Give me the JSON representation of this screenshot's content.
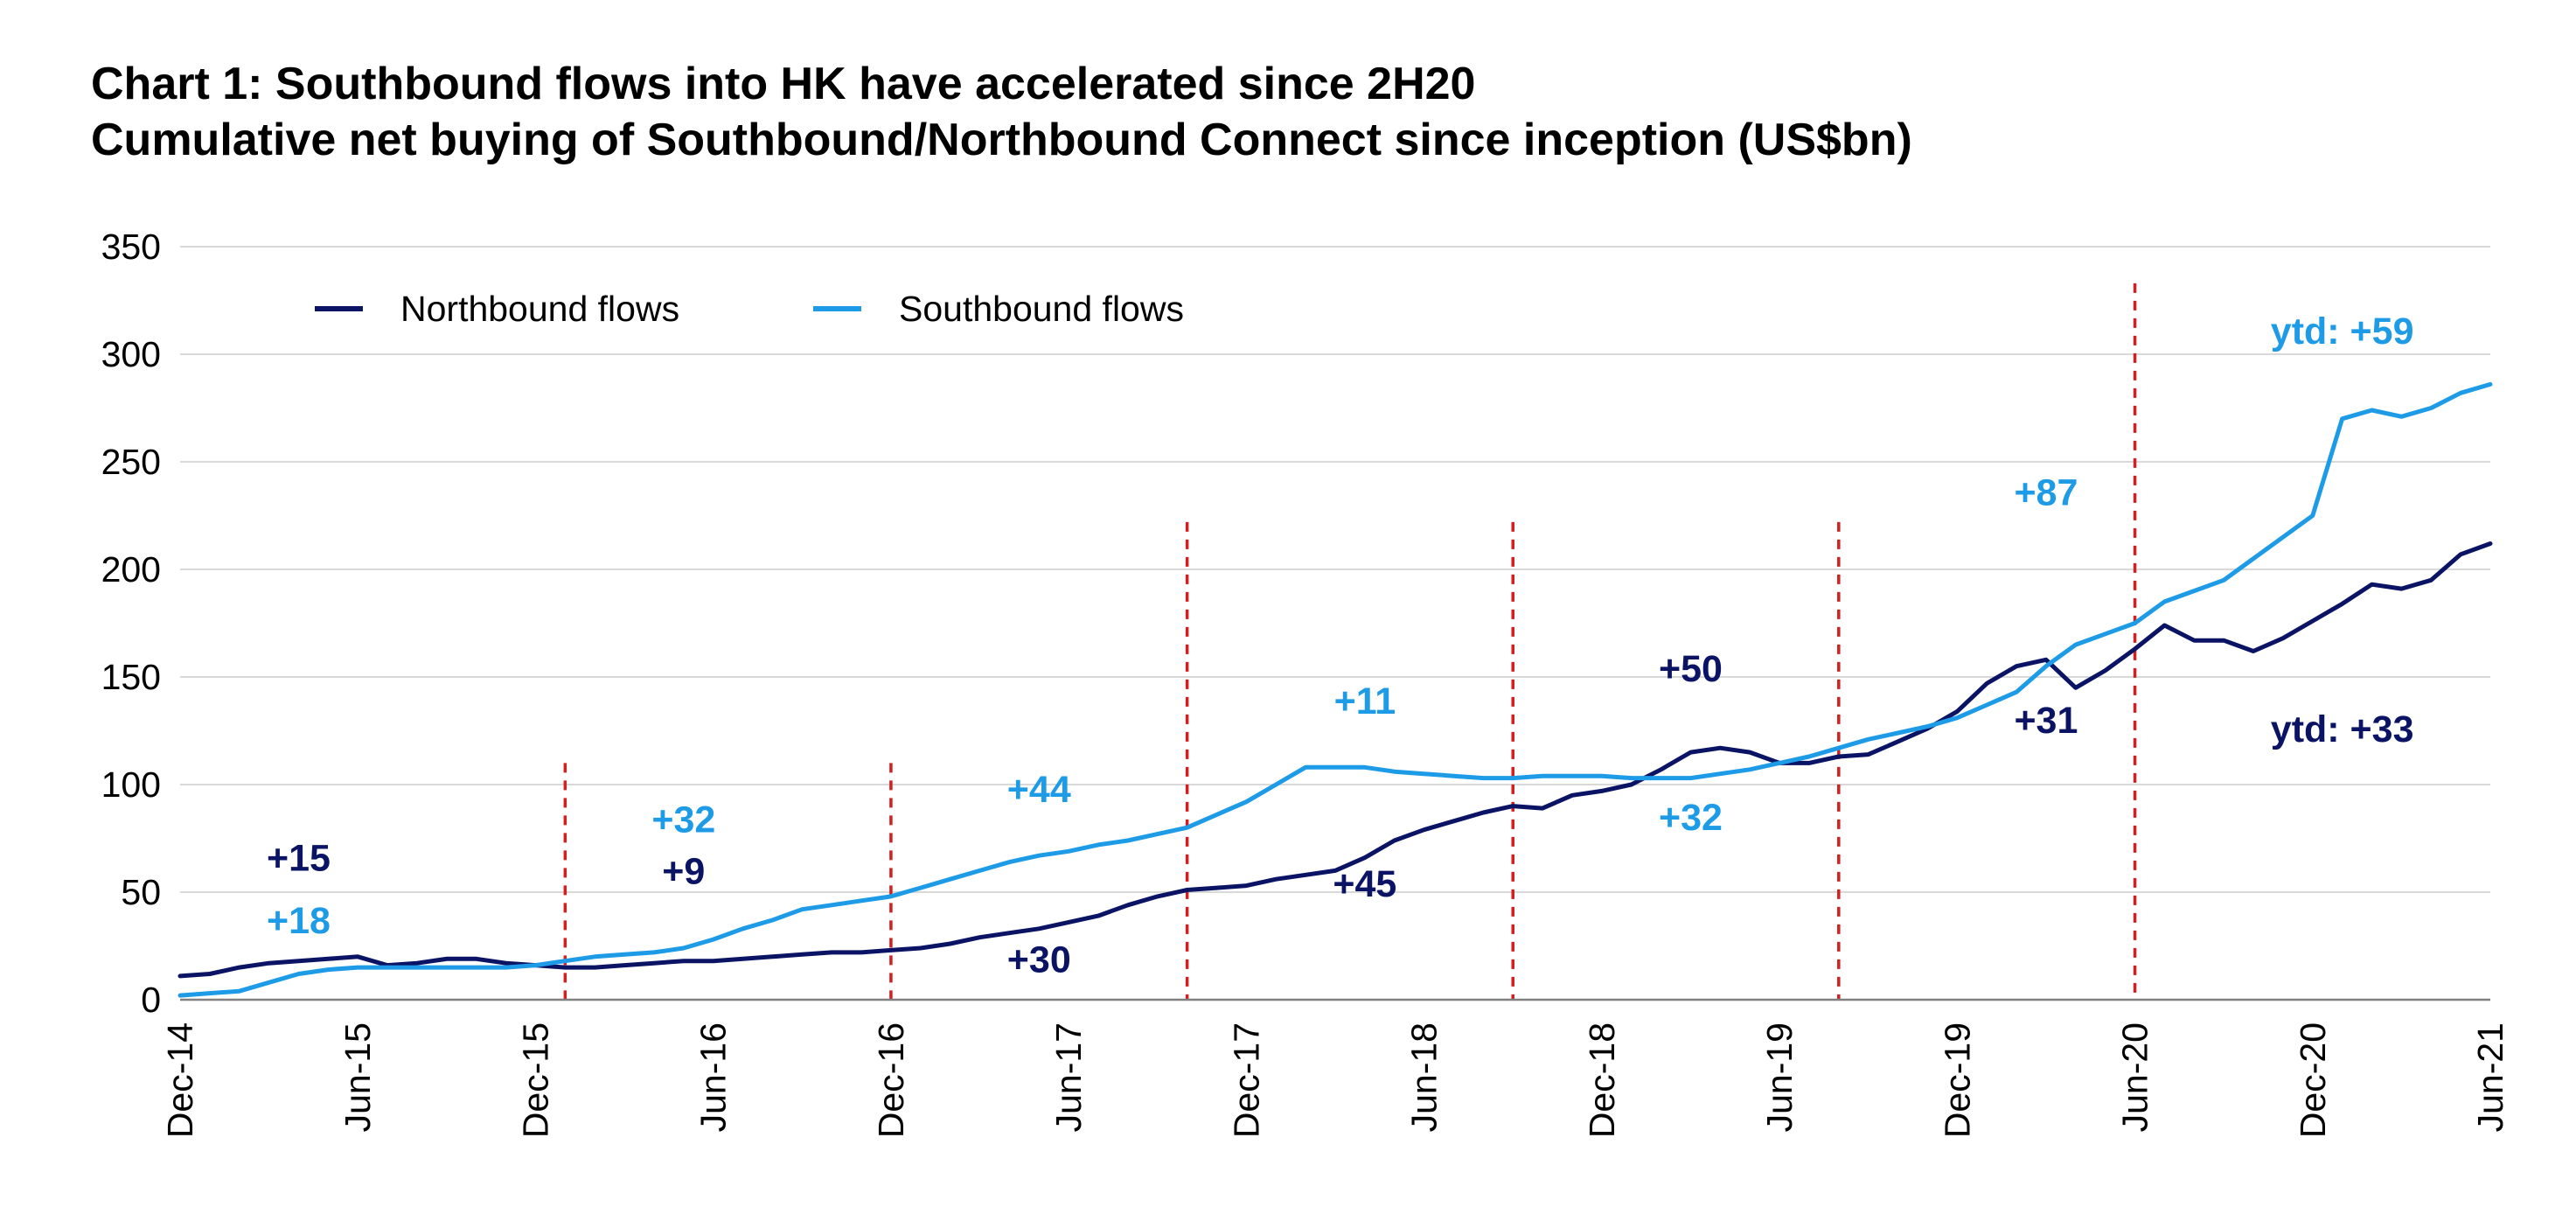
{
  "header": {
    "title": "Chart 1: Southbound flows into HK have accelerated since 2H20",
    "subtitle": "Cumulative net buying of Southbound/Northbound Connect since inception (US$bn)"
  },
  "chart_data": {
    "type": "line",
    "title": "Chart 1: Southbound flows into HK have accelerated since 2H20",
    "subtitle": "Cumulative net buying of Southbound/Northbound Connect since inception (US$bn)",
    "xlabel": "",
    "ylabel": "",
    "ylim": [
      0,
      350
    ],
    "yticks": [
      "0",
      "50",
      "100",
      "150",
      "200",
      "250",
      "300",
      "350"
    ],
    "xlim": [
      "2014-12",
      "2021-06"
    ],
    "xticks": [
      "Dec-14",
      "Jun-15",
      "Dec-15",
      "Jun-16",
      "Dec-16",
      "Jun-17",
      "Dec-17",
      "Jun-18",
      "Dec-18",
      "Jun-19",
      "Dec-19",
      "Jun-20",
      "Dec-20",
      "Jun-21"
    ],
    "grid": "horizontal",
    "legend_position": "top-left",
    "colors": {
      "northbound": "#0b1464",
      "southbound": "#1e9be6",
      "separator": "#d21f1f",
      "grid": "#d9d9d9"
    },
    "vertical_lines": [
      {
        "x": "2016-01",
        "top": 110
      },
      {
        "x": "2016-12",
        "top": 110
      },
      {
        "x": "2017-10",
        "top": 222
      },
      {
        "x": "2018-09",
        "top": 222
      },
      {
        "x": "2019-08",
        "top": 222
      },
      {
        "x": "2020-06",
        "top": 333
      }
    ],
    "series": [
      {
        "name": "Northbound flows",
        "color": "#0b1464",
        "points": [
          [
            "2014-12",
            11
          ],
          [
            "2015-01",
            12
          ],
          [
            "2015-02",
            15
          ],
          [
            "2015-03",
            17
          ],
          [
            "2015-04",
            18
          ],
          [
            "2015-05",
            19
          ],
          [
            "2015-06",
            20
          ],
          [
            "2015-07",
            16
          ],
          [
            "2015-08",
            17
          ],
          [
            "2015-09",
            19
          ],
          [
            "2015-10",
            19
          ],
          [
            "2015-11",
            17
          ],
          [
            "2015-12",
            16
          ],
          [
            "2016-01",
            15
          ],
          [
            "2016-02",
            15
          ],
          [
            "2016-03",
            16
          ],
          [
            "2016-04",
            17
          ],
          [
            "2016-05",
            18
          ],
          [
            "2016-06",
            18
          ],
          [
            "2016-07",
            19
          ],
          [
            "2016-08",
            20
          ],
          [
            "2016-09",
            21
          ],
          [
            "2016-10",
            22
          ],
          [
            "2016-11",
            22
          ],
          [
            "2016-12",
            23
          ],
          [
            "2017-01",
            24
          ],
          [
            "2017-02",
            26
          ],
          [
            "2017-03",
            29
          ],
          [
            "2017-04",
            31
          ],
          [
            "2017-05",
            33
          ],
          [
            "2017-06",
            36
          ],
          [
            "2017-07",
            39
          ],
          [
            "2017-08",
            44
          ],
          [
            "2017-09",
            48
          ],
          [
            "2017-10",
            51
          ],
          [
            "2017-11",
            52
          ],
          [
            "2017-12",
            53
          ],
          [
            "2018-01",
            56
          ],
          [
            "2018-02",
            58
          ],
          [
            "2018-03",
            60
          ],
          [
            "2018-04",
            66
          ],
          [
            "2018-05",
            74
          ],
          [
            "2018-06",
            79
          ],
          [
            "2018-07",
            83
          ],
          [
            "2018-08",
            87
          ],
          [
            "2018-09",
            90
          ],
          [
            "2018-10",
            89
          ],
          [
            "2018-11",
            95
          ],
          [
            "2018-12",
            97
          ],
          [
            "2019-01",
            100
          ],
          [
            "2019-02",
            107
          ],
          [
            "2019-03",
            115
          ],
          [
            "2019-04",
            117
          ],
          [
            "2019-05",
            115
          ],
          [
            "2019-06",
            110
          ],
          [
            "2019-07",
            110
          ],
          [
            "2019-08",
            113
          ],
          [
            "2019-09",
            114
          ],
          [
            "2019-10",
            120
          ],
          [
            "2019-11",
            126
          ],
          [
            "2019-12",
            134
          ],
          [
            "2020-01",
            147
          ],
          [
            "2020-02",
            155
          ],
          [
            "2020-03",
            158
          ],
          [
            "2020-04",
            145
          ],
          [
            "2020-05",
            153
          ],
          [
            "2020-06",
            163
          ],
          [
            "2020-07",
            174
          ],
          [
            "2020-08",
            167
          ],
          [
            "2020-09",
            167
          ],
          [
            "2020-10",
            162
          ],
          [
            "2020-11",
            168
          ],
          [
            "2020-12",
            176
          ],
          [
            "2021-01",
            184
          ],
          [
            "2021-02",
            193
          ],
          [
            "2021-03",
            191
          ],
          [
            "2021-04",
            195
          ],
          [
            "2021-05",
            207
          ],
          [
            "2021-06",
            212
          ]
        ]
      },
      {
        "name": "Southbound flows",
        "color": "#1e9be6",
        "points": [
          [
            "2014-12",
            2
          ],
          [
            "2015-01",
            3
          ],
          [
            "2015-02",
            4
          ],
          [
            "2015-03",
            8
          ],
          [
            "2015-04",
            12
          ],
          [
            "2015-05",
            14
          ],
          [
            "2015-06",
            15
          ],
          [
            "2015-07",
            15
          ],
          [
            "2015-08",
            15
          ],
          [
            "2015-09",
            15
          ],
          [
            "2015-10",
            15
          ],
          [
            "2015-11",
            15
          ],
          [
            "2015-12",
            16
          ],
          [
            "2016-01",
            18
          ],
          [
            "2016-02",
            20
          ],
          [
            "2016-03",
            21
          ],
          [
            "2016-04",
            22
          ],
          [
            "2016-05",
            24
          ],
          [
            "2016-06",
            28
          ],
          [
            "2016-07",
            33
          ],
          [
            "2016-08",
            37
          ],
          [
            "2016-09",
            42
          ],
          [
            "2016-10",
            44
          ],
          [
            "2016-11",
            46
          ],
          [
            "2016-12",
            48
          ],
          [
            "2017-01",
            52
          ],
          [
            "2017-02",
            56
          ],
          [
            "2017-03",
            60
          ],
          [
            "2017-04",
            64
          ],
          [
            "2017-05",
            67
          ],
          [
            "2017-06",
            69
          ],
          [
            "2017-07",
            72
          ],
          [
            "2017-08",
            74
          ],
          [
            "2017-09",
            77
          ],
          [
            "2017-10",
            80
          ],
          [
            "2017-11",
            86
          ],
          [
            "2017-12",
            92
          ],
          [
            "2018-01",
            100
          ],
          [
            "2018-02",
            108
          ],
          [
            "2018-03",
            108
          ],
          [
            "2018-04",
            108
          ],
          [
            "2018-05",
            106
          ],
          [
            "2018-06",
            105
          ],
          [
            "2018-07",
            104
          ],
          [
            "2018-08",
            103
          ],
          [
            "2018-09",
            103
          ],
          [
            "2018-10",
            104
          ],
          [
            "2018-11",
            104
          ],
          [
            "2018-12",
            104
          ],
          [
            "2019-01",
            103
          ],
          [
            "2019-02",
            103
          ],
          [
            "2019-03",
            103
          ],
          [
            "2019-04",
            105
          ],
          [
            "2019-05",
            107
          ],
          [
            "2019-06",
            110
          ],
          [
            "2019-07",
            113
          ],
          [
            "2019-08",
            117
          ],
          [
            "2019-09",
            121
          ],
          [
            "2019-10",
            124
          ],
          [
            "2019-11",
            127
          ],
          [
            "2019-12",
            131
          ],
          [
            "2020-01",
            137
          ],
          [
            "2020-02",
            143
          ],
          [
            "2020-03",
            155
          ],
          [
            "2020-04",
            165
          ],
          [
            "2020-05",
            170
          ],
          [
            "2020-06",
            175
          ],
          [
            "2020-07",
            185
          ],
          [
            "2020-08",
            190
          ],
          [
            "2020-09",
            195
          ],
          [
            "2020-10",
            205
          ],
          [
            "2020-11",
            215
          ],
          [
            "2020-12",
            225
          ],
          [
            "2021-01",
            270
          ],
          [
            "2021-02",
            274
          ],
          [
            "2021-03",
            271
          ],
          [
            "2021-04",
            275
          ],
          [
            "2021-05",
            282
          ],
          [
            "2021-06",
            286
          ]
        ]
      }
    ],
    "annotations": [
      {
        "text": "+15",
        "series": "Northbound flows",
        "x": "2015-04",
        "y": 66
      },
      {
        "text": "+18",
        "series": "Southbound flows",
        "x": "2015-04",
        "y": 37
      },
      {
        "text": "+32",
        "series": "Southbound flows",
        "x": "2016-05",
        "y": 84
      },
      {
        "text": "+9",
        "series": "Northbound flows",
        "x": "2016-05",
        "y": 60
      },
      {
        "text": "+44",
        "series": "Southbound flows",
        "x": "2017-05",
        "y": 98
      },
      {
        "text": "+30",
        "series": "Northbound flows",
        "x": "2017-05",
        "y": 19
      },
      {
        "text": "+11",
        "series": "Southbound flows",
        "x": "2018-04",
        "y": 139
      },
      {
        "text": "+45",
        "series": "Northbound flows",
        "x": "2018-04",
        "y": 54
      },
      {
        "text": "+50",
        "series": "Northbound flows",
        "x": "2019-03",
        "y": 154
      },
      {
        "text": "+32",
        "series": "Southbound flows",
        "x": "2019-03",
        "y": 85
      },
      {
        "text": "+87",
        "series": "Southbound flows",
        "x": "2020-03",
        "y": 236
      },
      {
        "text": "+31",
        "series": "Northbound flows",
        "x": "2020-03",
        "y": 130
      },
      {
        "text": "ytd: +59",
        "series": "Southbound flows",
        "x": "2021-01",
        "y": 311
      },
      {
        "text": "ytd: +33",
        "series": "Northbound flows",
        "x": "2021-01",
        "y": 126
      }
    ]
  }
}
